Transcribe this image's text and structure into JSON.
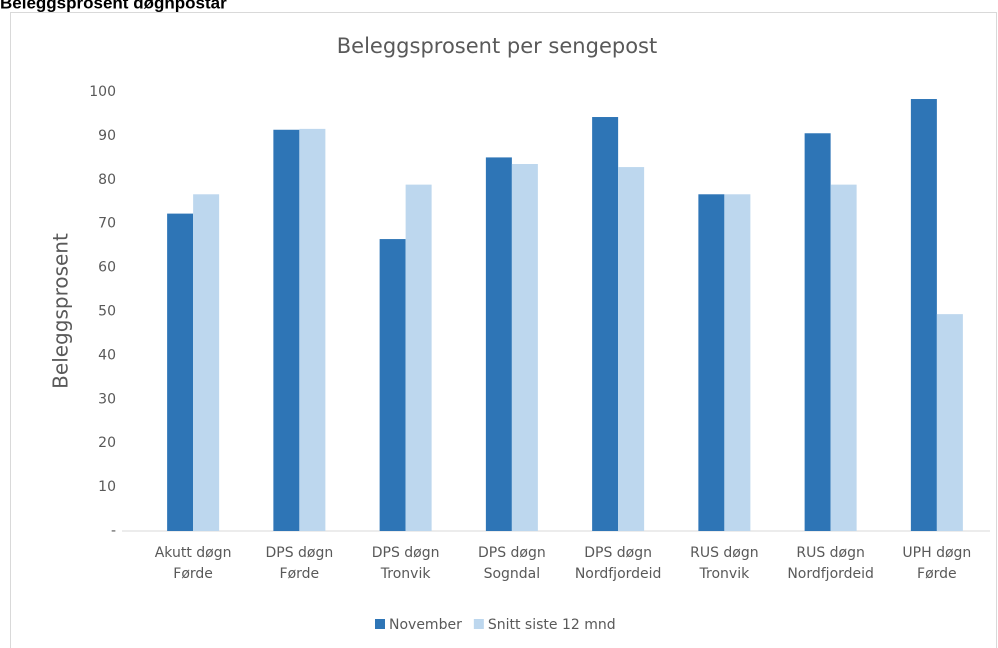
{
  "header": {
    "title": "Beleggsprosent døgnpostar"
  },
  "chart_data": {
    "type": "bar",
    "title": "Beleggsprosent per sengepost",
    "y_label": "Beleggsprosent",
    "categories": [
      "Akutt døgn\nFørde",
      "DPS døgn\nFørde",
      "DPS døgn\nTronvik",
      "DPS døgn\nSogndal",
      "DPS døgn\nNordfjordeid",
      "RUS døgn\nTronvik",
      "RUS døgn\nNordfjordeid",
      "UPH døgn\nFørde"
    ],
    "series": [
      {
        "name": "November",
        "color": "#2e75b6",
        "values": [
          72.3,
          91.4,
          66.5,
          85.1,
          94.3,
          76.7,
          90.6,
          98.4
        ]
      },
      {
        "name": "Snitt siste 12 mnd",
        "color": "#bdd7ee",
        "values": [
          76.7,
          91.6,
          78.9,
          83.6,
          82.9,
          76.7,
          78.9,
          49.4
        ]
      }
    ],
    "ylim": [
      0,
      100
    ],
    "yticks": [
      {
        "value": 0,
        "label": "-"
      },
      10,
      20,
      30,
      40,
      50,
      60,
      70,
      80,
      90,
      100
    ],
    "grid": false,
    "legend": "bottom"
  }
}
